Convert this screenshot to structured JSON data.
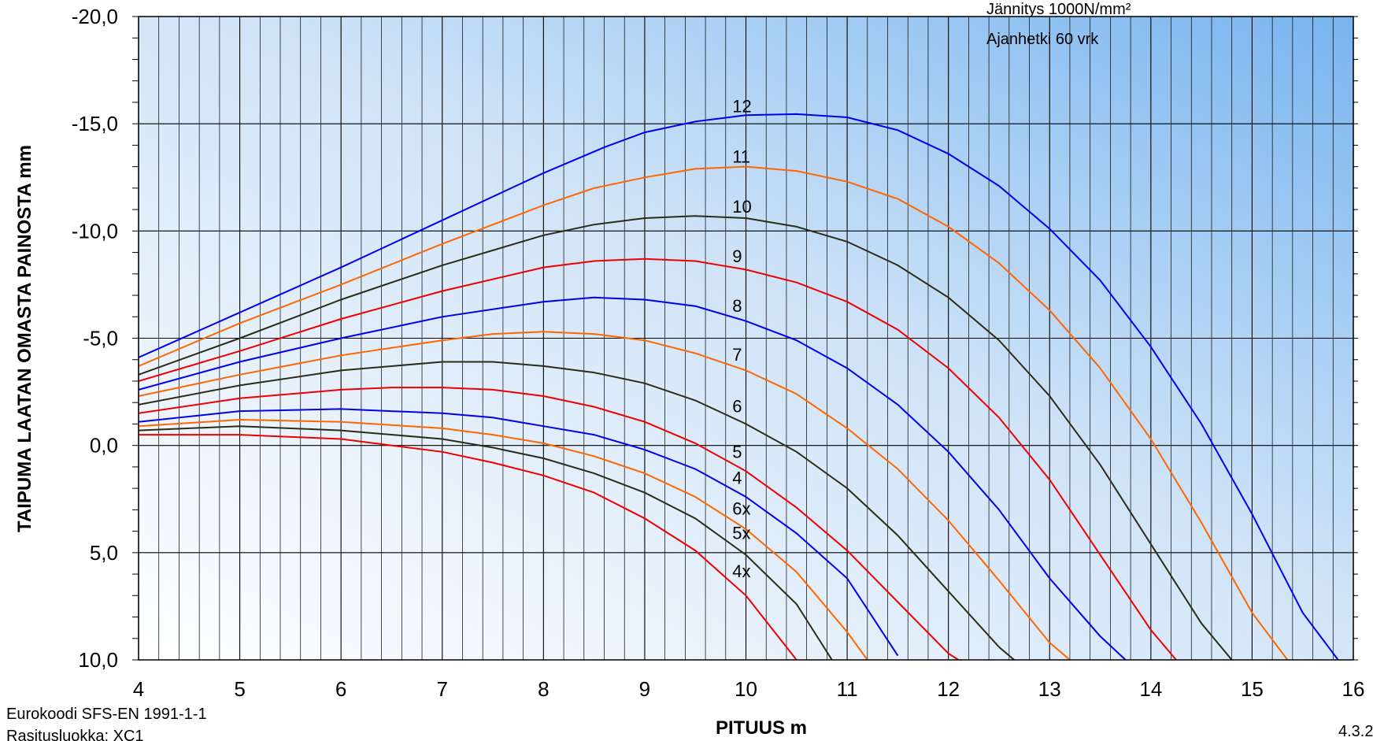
{
  "chart_data": {
    "type": "line",
    "xlabel": "PITUUS m",
    "ylabel": "TAIPUMA LAATAN OMASTA PAINOSTA mm",
    "xlim": [
      4,
      16
    ],
    "ylim": [
      -20,
      10
    ],
    "y_inverted": true,
    "x_ticks": [
      "4",
      "5",
      "6",
      "7",
      "8",
      "9",
      "10",
      "11",
      "12",
      "13",
      "14",
      "15",
      "16"
    ],
    "y_ticks": [
      "-20,0",
      "-15,0",
      "-10,0",
      "-5,0",
      "0,0",
      "5,0",
      "10,0"
    ],
    "grid": true,
    "annotations": [
      "Jännitys 1000N/mm²",
      "Ajanhetki 60 vrk"
    ],
    "series": [
      {
        "name": "12",
        "color": "#0000ee",
        "x": [
          4,
          5,
          6,
          7,
          8,
          8.6,
          9,
          9.5,
          10,
          10.5,
          11,
          11.5,
          12,
          12.5,
          13,
          13.5,
          14,
          14.5,
          15,
          15.5,
          15.85
        ],
        "y": [
          -4.1,
          -6.2,
          -8.3,
          -10.5,
          -12.7,
          -13.9,
          -14.6,
          -15.1,
          -15.4,
          -15.45,
          -15.3,
          -14.7,
          -13.6,
          -12.1,
          -10.1,
          -7.7,
          -4.6,
          -1.0,
          3.2,
          7.8,
          10.0
        ]
      },
      {
        "name": "11",
        "color": "#ff6600",
        "x": [
          4,
          5,
          6,
          7,
          8,
          8.5,
          9,
          9.5,
          10,
          10.5,
          11,
          11.5,
          12,
          12.5,
          13,
          13.5,
          14,
          14.5,
          15,
          15.35
        ],
        "y": [
          -3.7,
          -5.7,
          -7.5,
          -9.4,
          -11.2,
          -12.0,
          -12.5,
          -12.9,
          -13.0,
          -12.8,
          -12.3,
          -11.5,
          -10.2,
          -8.5,
          -6.3,
          -3.6,
          -0.3,
          3.6,
          7.8,
          10.0
        ]
      },
      {
        "name": "10",
        "color": "#2b2b16",
        "x": [
          4,
          5,
          6,
          7,
          8,
          8.5,
          9,
          9.5,
          10,
          10.5,
          11,
          11.5,
          12,
          12.5,
          13,
          13.5,
          14,
          14.5,
          14.8
        ],
        "y": [
          -3.3,
          -5.0,
          -6.8,
          -8.4,
          -9.8,
          -10.3,
          -10.6,
          -10.7,
          -10.6,
          -10.2,
          -9.5,
          -8.4,
          -6.9,
          -4.9,
          -2.3,
          0.9,
          4.6,
          8.3,
          10.0
        ]
      },
      {
        "name": "9",
        "color": "#ee0000",
        "x": [
          4,
          5,
          6,
          7,
          8,
          8.5,
          9,
          9.5,
          10,
          10.5,
          11,
          11.5,
          12,
          12.5,
          13,
          13.5,
          14,
          14.25
        ],
        "y": [
          -3.0,
          -4.4,
          -5.9,
          -7.2,
          -8.3,
          -8.6,
          -8.7,
          -8.6,
          -8.2,
          -7.6,
          -6.7,
          -5.4,
          -3.6,
          -1.3,
          1.6,
          5.1,
          8.6,
          10.0
        ]
      },
      {
        "name": "8",
        "color": "#0000ee",
        "x": [
          4,
          5,
          6,
          7,
          8,
          8.5,
          9,
          9.5,
          10,
          10.5,
          11,
          11.5,
          12,
          12.5,
          13,
          13.5,
          13.75
        ],
        "y": [
          -2.6,
          -3.9,
          -5.0,
          -6.0,
          -6.7,
          -6.9,
          -6.8,
          -6.5,
          -5.8,
          -4.9,
          -3.6,
          -1.9,
          0.3,
          3.0,
          6.2,
          8.9,
          10.0
        ]
      },
      {
        "name": "7",
        "color": "#ff6600",
        "x": [
          4,
          5,
          6,
          7,
          7.5,
          8,
          8.5,
          9,
          9.5,
          10,
          10.5,
          11,
          11.5,
          12,
          12.5,
          13,
          13.2
        ],
        "y": [
          -2.3,
          -3.3,
          -4.2,
          -4.9,
          -5.2,
          -5.3,
          -5.2,
          -4.9,
          -4.3,
          -3.5,
          -2.4,
          -0.8,
          1.1,
          3.5,
          6.3,
          9.2,
          10.0
        ]
      },
      {
        "name": "6",
        "color": "#2b2b16",
        "x": [
          4,
          5,
          6,
          7,
          7.5,
          8,
          8.5,
          9,
          9.5,
          10,
          10.5,
          11,
          11.5,
          12,
          12.5,
          12.65
        ],
        "y": [
          -1.9,
          -2.8,
          -3.5,
          -3.9,
          -3.9,
          -3.7,
          -3.4,
          -2.9,
          -2.1,
          -1.0,
          0.3,
          2.0,
          4.2,
          6.8,
          9.4,
          10.0
        ]
      },
      {
        "name": "5",
        "color": "#ee0000",
        "x": [
          4,
          5,
          6,
          6.5,
          7,
          7.5,
          8,
          8.5,
          9,
          9.5,
          10,
          10.5,
          11,
          11.5,
          12,
          12.1
        ],
        "y": [
          -1.5,
          -2.2,
          -2.6,
          -2.7,
          -2.7,
          -2.6,
          -2.3,
          -1.8,
          -1.1,
          -0.1,
          1.2,
          2.9,
          4.9,
          7.3,
          9.7,
          10.0
        ]
      },
      {
        "name": "4",
        "color": "#0000ee",
        "x": [
          4,
          5,
          6,
          7,
          7.5,
          8,
          8.5,
          9,
          9.5,
          10,
          10.5,
          11,
          11.5
        ],
        "y": [
          -1.1,
          -1.6,
          -1.7,
          -1.5,
          -1.3,
          -0.9,
          -0.5,
          0.2,
          1.1,
          2.4,
          4.1,
          6.2,
          9.8
        ]
      },
      {
        "name": "6x",
        "color": "#ff6600",
        "x": [
          4,
          5,
          6,
          7,
          7.5,
          8,
          8.5,
          9,
          9.5,
          10,
          10.5,
          11,
          11.2
        ],
        "y": [
          -0.9,
          -1.2,
          -1.1,
          -0.8,
          -0.5,
          -0.1,
          0.5,
          1.3,
          2.4,
          3.9,
          5.9,
          8.7,
          10.0
        ]
      },
      {
        "name": "5x",
        "color": "#2b2b16",
        "x": [
          4,
          5,
          6,
          7,
          7.5,
          8,
          8.5,
          9,
          9.5,
          10,
          10.5,
          10.85
        ],
        "y": [
          -0.7,
          -0.9,
          -0.7,
          -0.3,
          0.1,
          0.6,
          1.3,
          2.2,
          3.4,
          5.1,
          7.4,
          10.0
        ]
      },
      {
        "name": "4x",
        "color": "#ee0000",
        "x": [
          4,
          5,
          6,
          7,
          7.5,
          8,
          8.5,
          9,
          9.5,
          10,
          10.5
        ],
        "y": [
          -0.5,
          -0.5,
          -0.3,
          0.3,
          0.8,
          1.4,
          2.2,
          3.4,
          4.9,
          7.0,
          10.0
        ]
      }
    ]
  },
  "footer": {
    "standard": "Eurokoodi SFS-EN 1991-1-1",
    "exposure_class": "Rasitusluokka: XC1",
    "page_number": "4.3.2"
  }
}
